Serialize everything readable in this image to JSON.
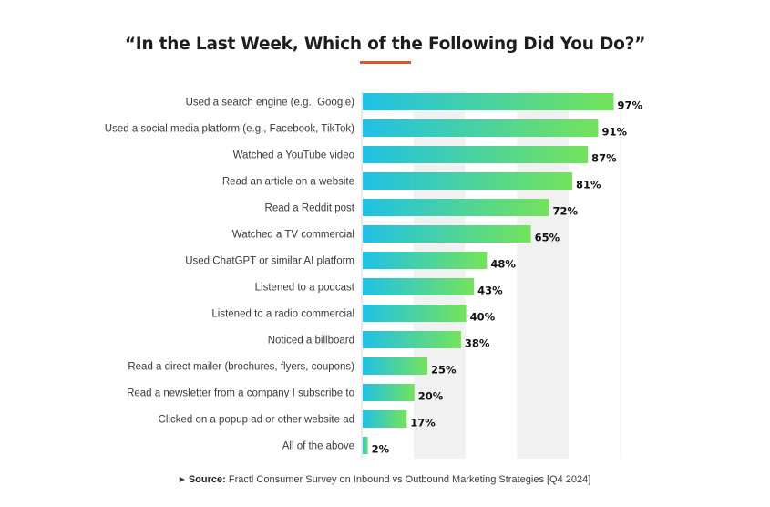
{
  "colors": {
    "accent": "#e0532d",
    "bar_start": "#1fc1e6",
    "bar_end": "#74e35b",
    "band": "#f1f1f1",
    "axis": "#d6d6d6"
  },
  "chart_data": {
    "type": "bar",
    "orientation": "horizontal",
    "title": "“In the Last Week, Which of the Following Did You Do?”",
    "xlim": [
      0,
      100
    ],
    "categories": [
      "Used a search engine (e.g., Google)",
      "Used a social media platform (e.g., Facebook, TikTok)",
      "Watched a YouTube video",
      "Read an article on a website",
      "Read a Reddit post",
      "Watched a TV commercial",
      "Used ChatGPT or similar AI platform",
      "Listened to a podcast",
      "Listened to a radio commercial",
      "Noticed a billboard",
      "Read a direct mailer (brochures, flyers, coupons)",
      "Read a newsletter from a company I subscribe to",
      "Clicked on a popup ad or other website ad",
      "All of the above"
    ],
    "values": [
      97,
      91,
      87,
      81,
      72,
      65,
      48,
      43,
      40,
      38,
      25,
      20,
      17,
      2
    ],
    "value_labels": [
      "97%",
      "91%",
      "87%",
      "81%",
      "72%",
      "65%",
      "48%",
      "43%",
      "40%",
      "38%",
      "25%",
      "20%",
      "17%",
      "2%"
    ]
  },
  "source": {
    "marker": "▶",
    "key": "Source:",
    "text": "Fractl Consumer Survey on Inbound vs Outbound Marketing Strategies [Q4 2024]"
  }
}
